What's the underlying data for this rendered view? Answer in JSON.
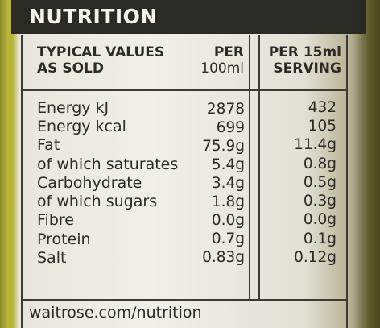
{
  "label": {
    "title": "NUTRITION",
    "header": {
      "col1_line1": "TYPICAL VALUES",
      "col1_line2": "AS SOLD",
      "col2_line1": "PER",
      "col2_line2": "100ml",
      "col3_line1": "PER 15ml",
      "col3_line2": "SERVING"
    },
    "rows": [
      {
        "name": "Energy kJ",
        "per100": "2878",
        "serving": "432"
      },
      {
        "name": "Energy kcal",
        "per100": "699",
        "serving": "105"
      },
      {
        "name": "Fat",
        "per100": "75.9g",
        "serving": "11.4g"
      },
      {
        "name": "of which saturates",
        "per100": "5.4g",
        "serving": "0.8g"
      },
      {
        "name": "Carbohydrate",
        "per100": "3.4g",
        "serving": "0.5g"
      },
      {
        "name": "of which sugars",
        "per100": "1.8g",
        "serving": "0.3g"
      },
      {
        "name": "Fibre",
        "per100": "0.0g",
        "serving": "0.0g"
      },
      {
        "name": "Protein",
        "per100": "0.7g",
        "serving": "0.1g"
      },
      {
        "name": "Salt",
        "per100": "0.83g",
        "serving": "0.12g"
      }
    ],
    "footer": "waitrose.com/nutrition"
  }
}
